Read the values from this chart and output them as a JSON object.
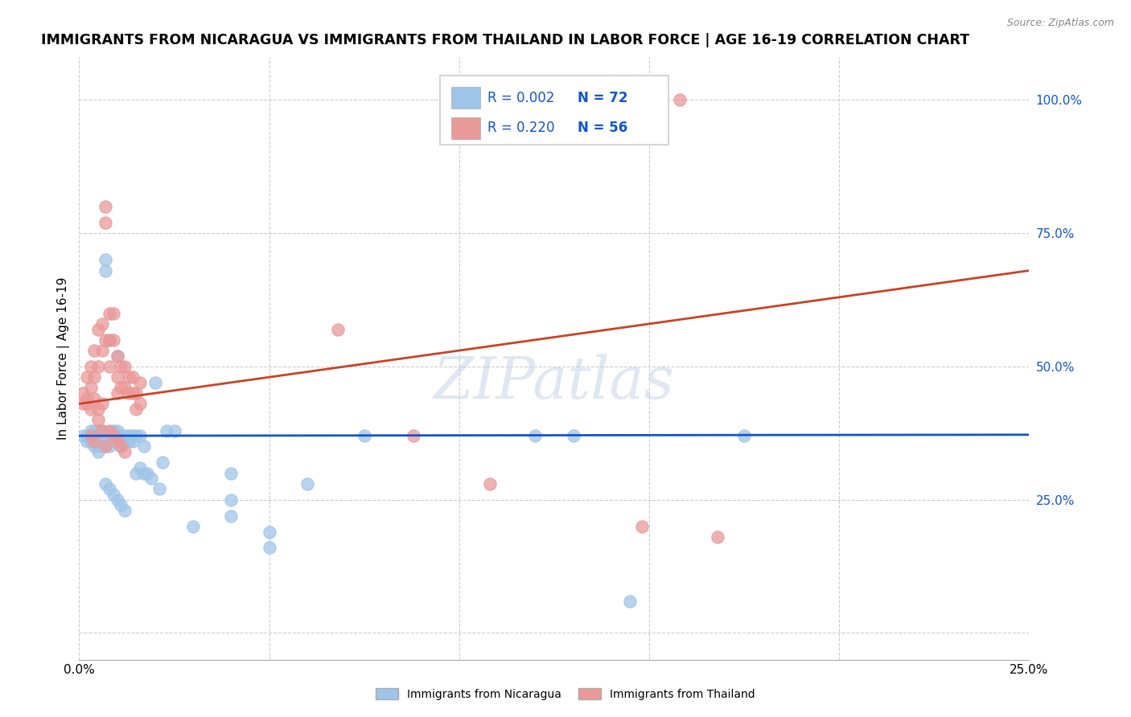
{
  "title": "IMMIGRANTS FROM NICARAGUA VS IMMIGRANTS FROM THAILAND IN LABOR FORCE | AGE 16-19 CORRELATION CHART",
  "source": "Source: ZipAtlas.com",
  "ylabel": "In Labor Force | Age 16-19",
  "yticks": [
    0.0,
    0.25,
    0.5,
    0.75,
    1.0
  ],
  "ytick_labels": [
    "",
    "25.0%",
    "50.0%",
    "75.0%",
    "100.0%"
  ],
  "xlim": [
    0,
    0.25
  ],
  "ylim": [
    -0.05,
    1.08
  ],
  "blue_color": "#9fc5e8",
  "pink_color": "#ea9999",
  "blue_line_color": "#1155cc",
  "pink_line_color": "#cc4125",
  "legend_text_color": "#1155cc",
  "watermark": "ZIPatlas",
  "blue_trend_x": [
    0.0,
    0.25
  ],
  "blue_trend_y": [
    0.37,
    0.372
  ],
  "pink_trend_x": [
    0.0,
    0.25
  ],
  "pink_trend_y": [
    0.43,
    0.68
  ],
  "grid_color": "#cccccc",
  "bg_color": "#ffffff",
  "right_yaxis_color": "#1155cc",
  "title_fontsize": 12.5,
  "axis_label_fontsize": 11,
  "tick_fontsize": 11,
  "blue_scatter_x": [
    0.001,
    0.002,
    0.002,
    0.003,
    0.003,
    0.003,
    0.004,
    0.004,
    0.004,
    0.004,
    0.005,
    0.005,
    0.005,
    0.005,
    0.005,
    0.006,
    0.006,
    0.006,
    0.006,
    0.007,
    0.007,
    0.007,
    0.008,
    0.008,
    0.008,
    0.008,
    0.009,
    0.009,
    0.009,
    0.01,
    0.01,
    0.01,
    0.011,
    0.011,
    0.011,
    0.012,
    0.012,
    0.013,
    0.013,
    0.014,
    0.014,
    0.015,
    0.015,
    0.016,
    0.016,
    0.017,
    0.017,
    0.018,
    0.019,
    0.02,
    0.021,
    0.022,
    0.023,
    0.007,
    0.008,
    0.009,
    0.01,
    0.011,
    0.012,
    0.12,
    0.13,
    0.075,
    0.04,
    0.04,
    0.04,
    0.05,
    0.05,
    0.06,
    0.03,
    0.025,
    0.175,
    0.145
  ],
  "blue_scatter_y": [
    0.37,
    0.37,
    0.36,
    0.38,
    0.37,
    0.36,
    0.38,
    0.37,
    0.36,
    0.35,
    0.38,
    0.37,
    0.36,
    0.35,
    0.34,
    0.38,
    0.37,
    0.36,
    0.35,
    0.7,
    0.68,
    0.35,
    0.37,
    0.36,
    0.55,
    0.35,
    0.38,
    0.37,
    0.36,
    0.38,
    0.37,
    0.52,
    0.37,
    0.36,
    0.35,
    0.37,
    0.36,
    0.37,
    0.36,
    0.37,
    0.36,
    0.37,
    0.3,
    0.37,
    0.31,
    0.35,
    0.3,
    0.3,
    0.29,
    0.47,
    0.27,
    0.32,
    0.38,
    0.28,
    0.27,
    0.26,
    0.25,
    0.24,
    0.23,
    0.37,
    0.37,
    0.37,
    0.3,
    0.25,
    0.22,
    0.19,
    0.16,
    0.28,
    0.2,
    0.38,
    0.37,
    0.06
  ],
  "pink_scatter_x": [
    0.001,
    0.002,
    0.002,
    0.003,
    0.003,
    0.004,
    0.004,
    0.005,
    0.005,
    0.006,
    0.006,
    0.007,
    0.007,
    0.007,
    0.008,
    0.008,
    0.008,
    0.009,
    0.009,
    0.01,
    0.01,
    0.01,
    0.011,
    0.011,
    0.012,
    0.012,
    0.013,
    0.013,
    0.014,
    0.014,
    0.015,
    0.015,
    0.016,
    0.016,
    0.001,
    0.002,
    0.003,
    0.004,
    0.005,
    0.006,
    0.007,
    0.008,
    0.009,
    0.01,
    0.011,
    0.012,
    0.003,
    0.004,
    0.005,
    0.006,
    0.148,
    0.168,
    0.108,
    0.088,
    0.158,
    0.068
  ],
  "pink_scatter_y": [
    0.43,
    0.48,
    0.44,
    0.5,
    0.46,
    0.53,
    0.48,
    0.57,
    0.5,
    0.58,
    0.53,
    0.8,
    0.77,
    0.55,
    0.6,
    0.55,
    0.5,
    0.6,
    0.55,
    0.52,
    0.48,
    0.45,
    0.5,
    0.46,
    0.5,
    0.46,
    0.48,
    0.45,
    0.48,
    0.45,
    0.45,
    0.42,
    0.47,
    0.43,
    0.45,
    0.43,
    0.42,
    0.44,
    0.42,
    0.43,
    0.35,
    0.38,
    0.37,
    0.36,
    0.35,
    0.34,
    0.37,
    0.36,
    0.4,
    0.38,
    0.2,
    0.18,
    0.28,
    0.37,
    1.0,
    0.57
  ]
}
